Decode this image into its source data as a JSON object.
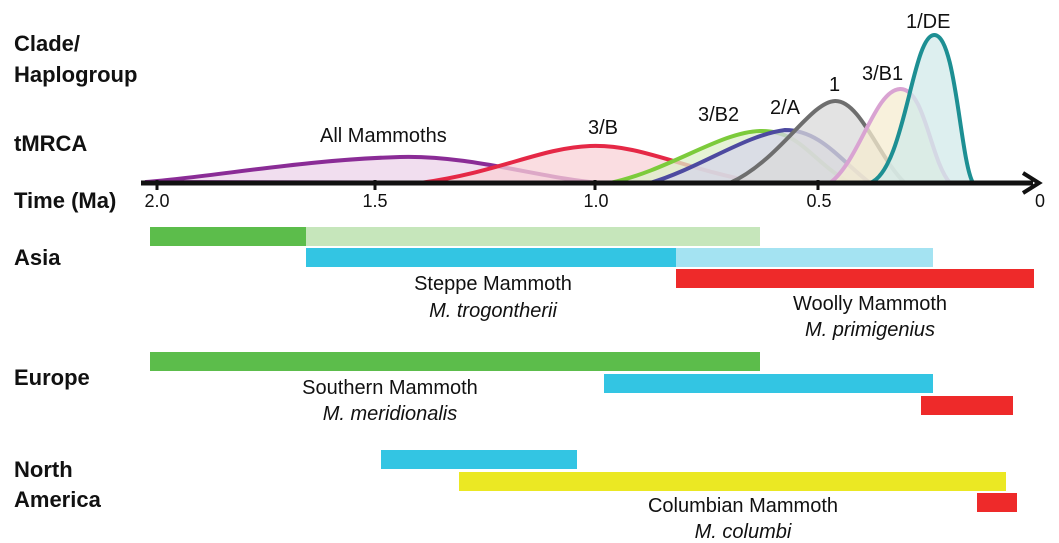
{
  "labels": {
    "clade_line1": "Clade/",
    "clade_line2": "Haplogroup",
    "tmrca": "tMRCA",
    "time": "Time (Ma)",
    "asia": "Asia",
    "europe": "Europe",
    "na_line1": "North",
    "na_line2": "America"
  },
  "axis": {
    "ticks": [
      "2.0",
      "1.5",
      "1.0",
      "0.5",
      "0"
    ],
    "range_ma": [
      2.0,
      0
    ]
  },
  "colors": {
    "green": "#5cbd4b",
    "light_green": "#c6e6bb",
    "blue": "#33c5e3",
    "light_blue": "#a4e3f2",
    "red": "#ee2a2a",
    "yellow": "#ebe823"
  },
  "clades": [
    {
      "label": "All Mammoths",
      "color": "#8a2c96",
      "fill": "#ecd3ea"
    },
    {
      "label": "3/B",
      "color": "#e52846",
      "fill": "#f8d2d7"
    },
    {
      "label": "3/B2",
      "color": "#7ccb3b",
      "fill": "#dcefc8"
    },
    {
      "label": "2/A",
      "color": "#4d4aa0",
      "fill": "#d6d5ea"
    },
    {
      "label": "1",
      "color": "#6e6e6e",
      "fill": "#d9d9d9"
    },
    {
      "label": "3/B1",
      "color": "#d9a3d2",
      "fill": "#f5ecd0"
    },
    {
      "label": "1/DE",
      "color": "#1d8f93",
      "fill": "#d2eaea"
    }
  ],
  "regions": {
    "asia": {
      "steppe_name": "Steppe Mammoth",
      "steppe_species": "M. trogontherii",
      "woolly_name": "Woolly Mammoth",
      "woolly_species": "M. primigenius"
    },
    "europe": {
      "southern_name": "Southern Mammoth",
      "southern_species": "M. meridionalis"
    },
    "north_america": {
      "columbian_name": "Columbian Mammoth",
      "columbian_species": "M. columbi"
    }
  }
}
